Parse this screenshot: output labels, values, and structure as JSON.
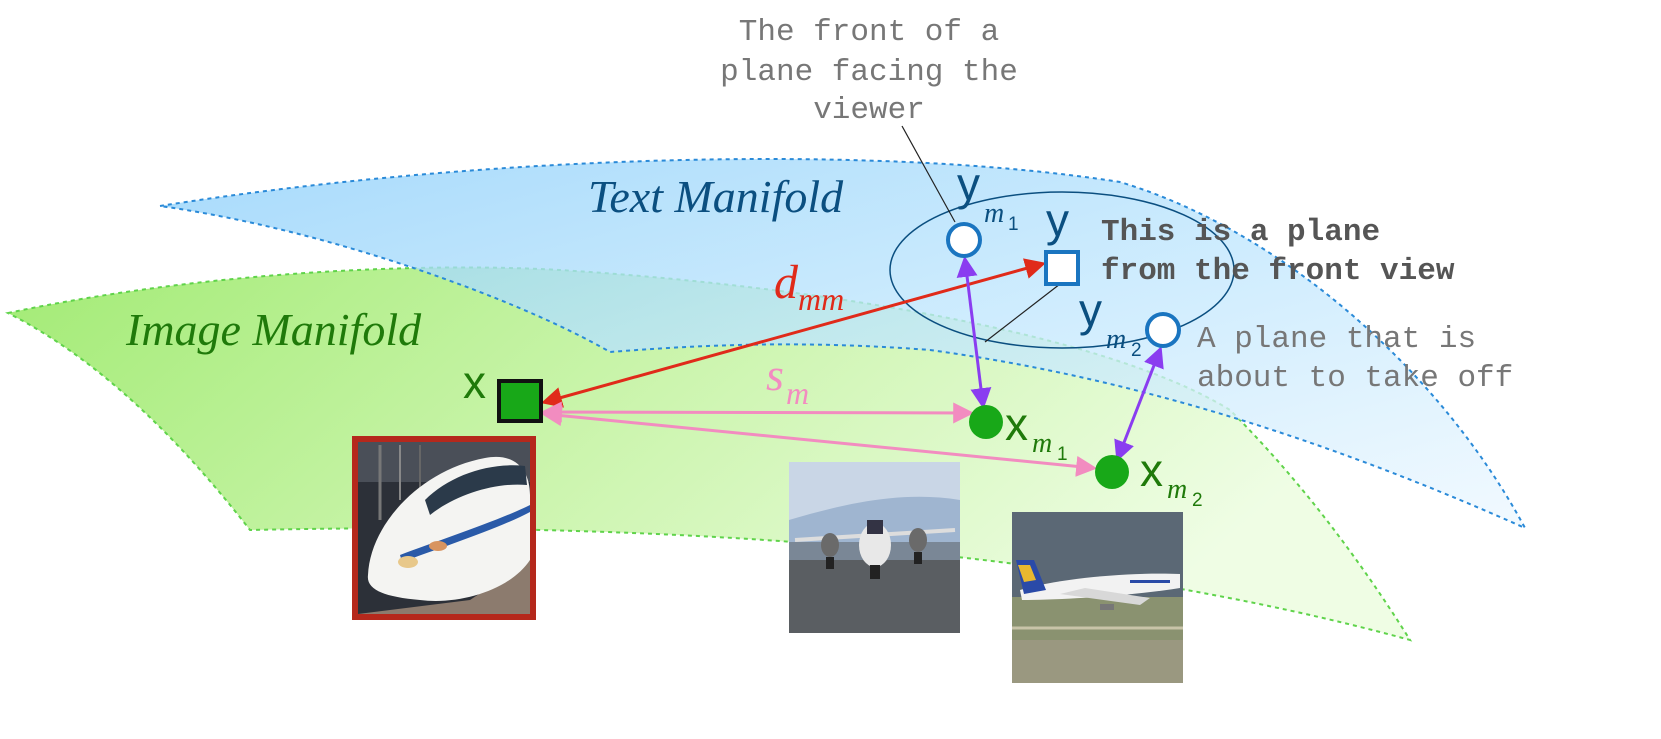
{
  "manifolds": {
    "text": {
      "label": "Text Manifold",
      "color": "#0b4f80"
    },
    "image": {
      "label": "Image Manifold",
      "color": "#1f7a0a"
    }
  },
  "symbols": {
    "x": "x",
    "y": "y",
    "y_m1_base": "y",
    "y_m1_sub": "m",
    "y_m1_subsub": "1",
    "y_m2_base": "y",
    "y_m2_sub": "m",
    "y_m2_subsub": "2",
    "x_m1_base": "x",
    "x_m1_sub": "m",
    "x_m1_subsub": "1",
    "x_m2_base": "x",
    "x_m2_sub": "m",
    "x_m2_subsub": "2",
    "d_base": "d",
    "d_sub": "mm",
    "s_base": "s",
    "s_sub": "m"
  },
  "captions": {
    "front_line1": "The front of a",
    "front_line2": "plane facing the",
    "front_line3": "viewer",
    "query_line1": "This is a plane",
    "query_line2": "from the front view",
    "takeoff_line1": "A plane that is",
    "takeoff_line2": "about to take off"
  },
  "colors": {
    "d_mm": "#e02a1a",
    "s_m": "#f28cc0",
    "match": "#8a3df0",
    "node_green": "#18a818",
    "node_blue": "#1a75c0"
  }
}
